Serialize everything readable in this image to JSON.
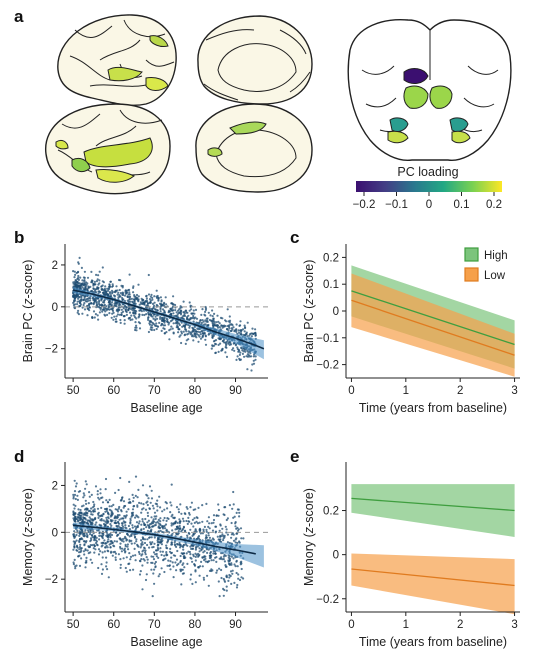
{
  "panel_labels": {
    "a": "a",
    "b": "b",
    "c": "c",
    "d": "d",
    "e": "e"
  },
  "colorbar": {
    "title": "PC loading",
    "ticks": [
      "−0.2",
      "−0.1",
      "0",
      "0.1",
      "0.2"
    ],
    "colors": [
      "#3b0f70",
      "#433e85",
      "#2a788e",
      "#22a884",
      "#7ad151",
      "#fde725"
    ]
  },
  "colors": {
    "scatter": "#1f4e73",
    "fit_line": "#0d2a45",
    "fit_band": "#4a8fc7",
    "high": "#3f9e3f",
    "high_band": "#7cc47c",
    "low": "#e07b1f",
    "low_band": "#f6a04a"
  },
  "chart_data": [
    {
      "id": "b",
      "type": "scatter",
      "xlabel": "Baseline age",
      "ylabel_parts": [
        "Brain PC (",
        "z",
        "-score)"
      ],
      "xlim": [
        48,
        98
      ],
      "ylim": [
        -3.4,
        3.0
      ],
      "xticks": [
        50,
        60,
        70,
        80,
        90
      ],
      "yticks": [
        -2,
        0,
        2
      ],
      "reference_line": 0,
      "fit": {
        "x": [
          50,
          55,
          60,
          65,
          70,
          75,
          80,
          85,
          90,
          95,
          97
        ],
        "y": [
          0.8,
          0.6,
          0.35,
          0.05,
          -0.25,
          -0.55,
          -0.85,
          -1.2,
          -1.5,
          -1.85,
          -2.0
        ]
      },
      "fit_band": {
        "x": [
          50,
          60,
          70,
          80,
          90,
          97
        ],
        "lower": [
          0.65,
          0.28,
          -0.32,
          -0.95,
          -1.75,
          -2.5
        ],
        "upper": [
          0.95,
          0.42,
          -0.18,
          -0.75,
          -1.3,
          -1.6
        ]
      },
      "scatter_summary": {
        "x_range": [
          50,
          95
        ],
        "spread_sd": 0.45
      }
    },
    {
      "id": "c",
      "type": "line",
      "xlabel": "Time (years from baseline)",
      "ylabel_parts": [
        "Brain PC (",
        "z",
        "-score)"
      ],
      "xlim": [
        -0.1,
        3.1
      ],
      "ylim": [
        -0.25,
        0.25
      ],
      "xticks": [
        0,
        1,
        2,
        3
      ],
      "yticks": [
        0.2,
        0.1,
        0,
        -0.1,
        -0.2
      ],
      "legend": {
        "position": "top-right"
      },
      "series": [
        {
          "name": "High",
          "x": [
            0,
            3
          ],
          "y": [
            0.075,
            -0.125
          ],
          "lower": [
            -0.02,
            -0.215
          ],
          "upper": [
            0.17,
            -0.035
          ]
        },
        {
          "name": "Low",
          "x": [
            0,
            3
          ],
          "y": [
            0.04,
            -0.165
          ],
          "lower": [
            -0.06,
            -0.245
          ],
          "upper": [
            0.14,
            -0.085
          ]
        }
      ]
    },
    {
      "id": "d",
      "type": "scatter",
      "xlabel": "Baseline age",
      "ylabel_parts": [
        "Memory (",
        "z",
        "-score)"
      ],
      "xlim": [
        48,
        98
      ],
      "ylim": [
        -3.4,
        3.0
      ],
      "xticks": [
        50,
        60,
        70,
        80,
        90
      ],
      "yticks": [
        -2,
        0,
        2
      ],
      "reference_line": 0,
      "fit": {
        "x": [
          50,
          55,
          60,
          65,
          70,
          75,
          80,
          85,
          90,
          95
        ],
        "y": [
          0.3,
          0.22,
          0.12,
          0.02,
          -0.1,
          -0.25,
          -0.42,
          -0.6,
          -0.75,
          -0.92
        ]
      },
      "fit_band": {
        "x": [
          50,
          60,
          70,
          80,
          90,
          97
        ],
        "lower": [
          0.15,
          0.05,
          -0.18,
          -0.55,
          -1.05,
          -1.5
        ],
        "upper": [
          0.42,
          0.2,
          -0.02,
          -0.3,
          -0.5,
          -0.55
        ]
      },
      "scatter_summary": {
        "x_range": [
          50,
          92
        ],
        "spread_sd": 0.8
      }
    },
    {
      "id": "e",
      "type": "line",
      "xlabel": "Time (years from baseline)",
      "ylabel_parts": [
        "Memory (",
        "z",
        "-score)"
      ],
      "xlim": [
        -0.1,
        3.1
      ],
      "ylim": [
        -0.26,
        0.42
      ],
      "xticks": [
        0,
        1,
        2,
        3
      ],
      "yticks": [
        0.2,
        0,
        -0.2
      ],
      "series": [
        {
          "name": "High",
          "x": [
            0,
            3
          ],
          "y": [
            0.255,
            0.2
          ],
          "lower": [
            0.19,
            0.08
          ],
          "upper": [
            0.32,
            0.32
          ]
        },
        {
          "name": "Low",
          "x": [
            0,
            3
          ],
          "y": [
            -0.065,
            -0.14
          ],
          "lower": [
            -0.14,
            -0.27
          ],
          "upper": [
            0.005,
            -0.02
          ]
        }
      ]
    }
  ]
}
